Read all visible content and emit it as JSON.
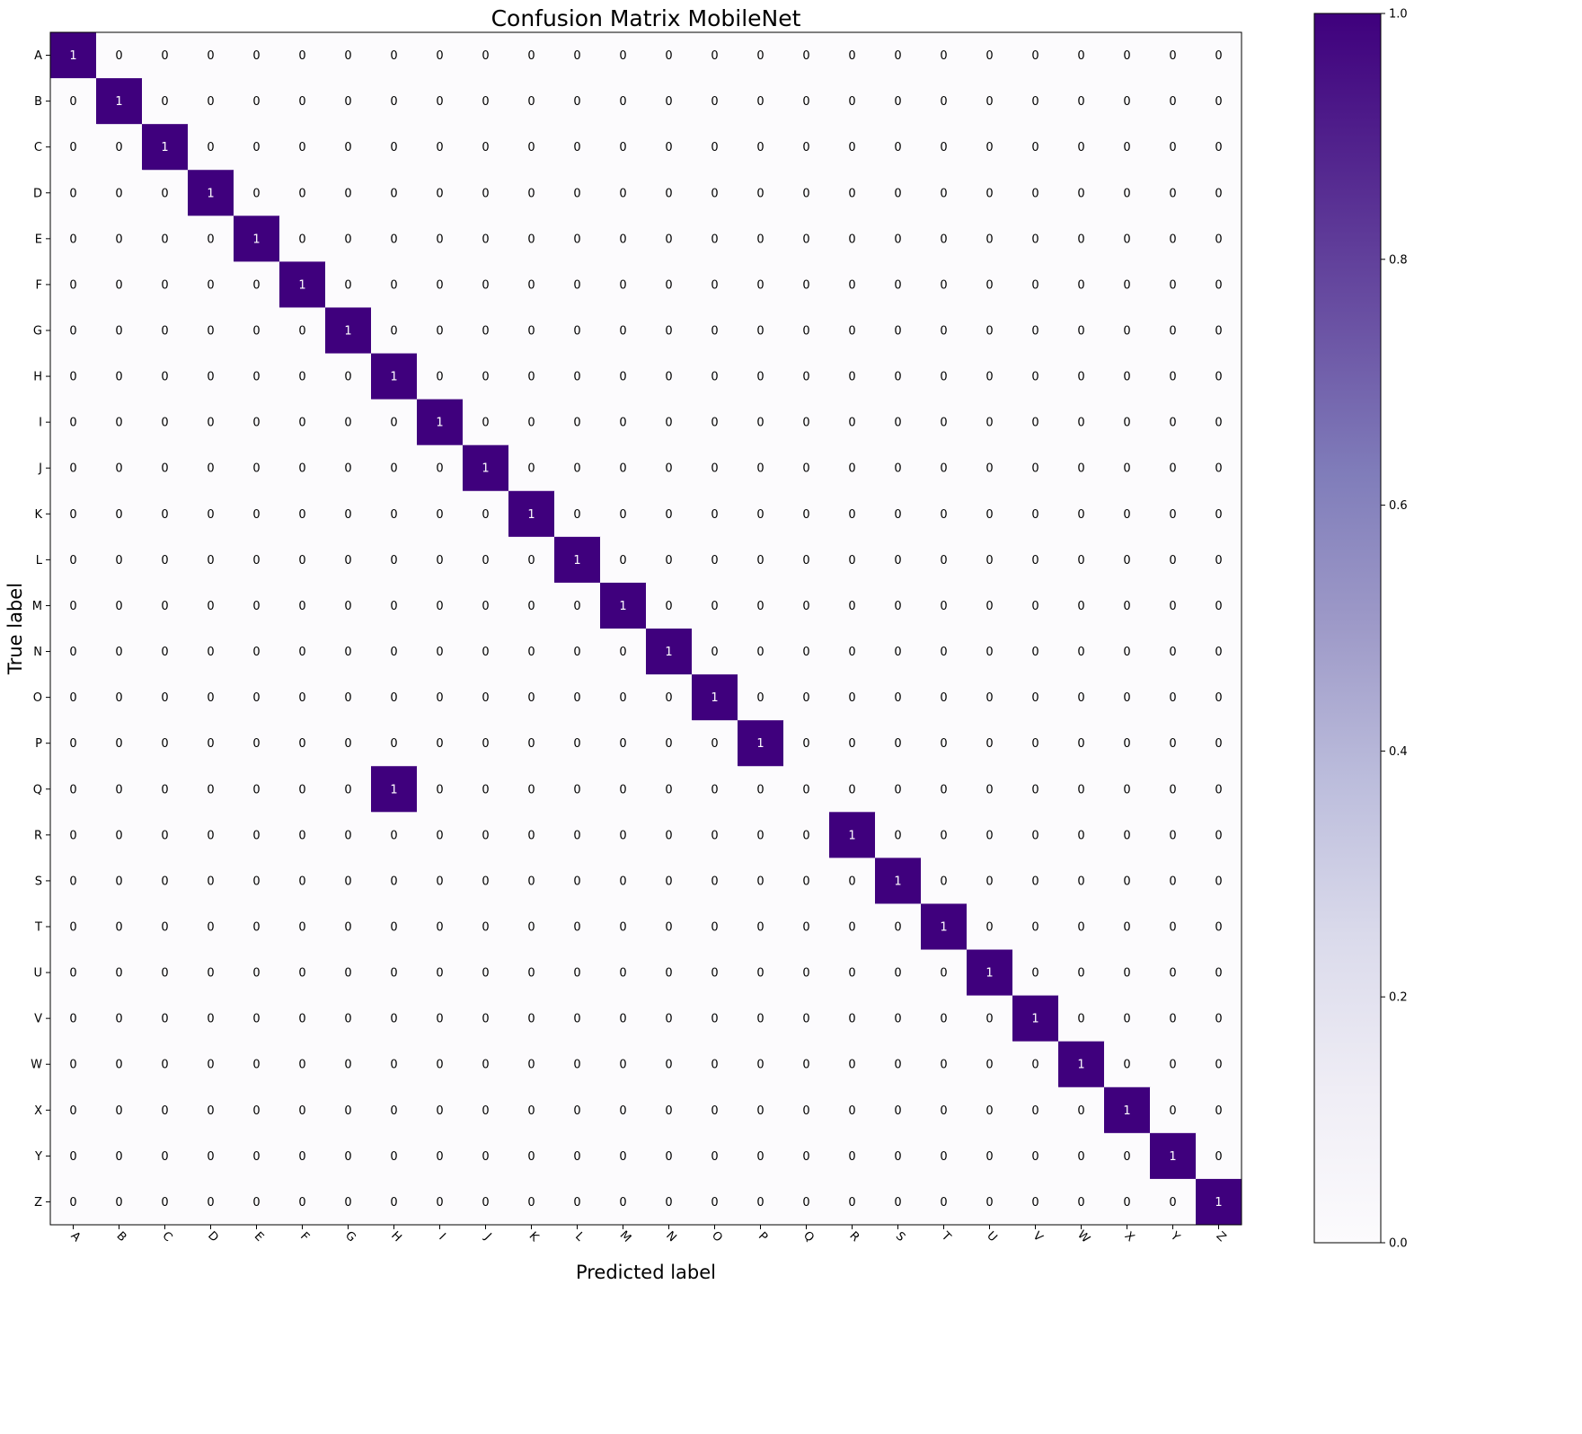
{
  "chart_data": {
    "type": "heatmap",
    "title": "Confusion Matrix MobileNet",
    "xlabel": "Predicted label",
    "ylabel": "True label",
    "x_categories": [
      "A",
      "B",
      "C",
      "D",
      "E",
      "F",
      "G",
      "H",
      "I",
      "J",
      "K",
      "L",
      "M",
      "N",
      "O",
      "P",
      "Q",
      "R",
      "S",
      "T",
      "U",
      "V",
      "W",
      "X",
      "Y",
      "Z"
    ],
    "y_categories": [
      "A",
      "B",
      "C",
      "D",
      "E",
      "F",
      "G",
      "H",
      "I",
      "J",
      "K",
      "L",
      "M",
      "N",
      "O",
      "P",
      "Q",
      "R",
      "S",
      "T",
      "U",
      "V",
      "W",
      "X",
      "Y",
      "Z"
    ],
    "values": [
      [
        1,
        0,
        0,
        0,
        0,
        0,
        0,
        0,
        0,
        0,
        0,
        0,
        0,
        0,
        0,
        0,
        0,
        0,
        0,
        0,
        0,
        0,
        0,
        0,
        0,
        0
      ],
      [
        0,
        1,
        0,
        0,
        0,
        0,
        0,
        0,
        0,
        0,
        0,
        0,
        0,
        0,
        0,
        0,
        0,
        0,
        0,
        0,
        0,
        0,
        0,
        0,
        0,
        0
      ],
      [
        0,
        0,
        1,
        0,
        0,
        0,
        0,
        0,
        0,
        0,
        0,
        0,
        0,
        0,
        0,
        0,
        0,
        0,
        0,
        0,
        0,
        0,
        0,
        0,
        0,
        0
      ],
      [
        0,
        0,
        0,
        1,
        0,
        0,
        0,
        0,
        0,
        0,
        0,
        0,
        0,
        0,
        0,
        0,
        0,
        0,
        0,
        0,
        0,
        0,
        0,
        0,
        0,
        0
      ],
      [
        0,
        0,
        0,
        0,
        1,
        0,
        0,
        0,
        0,
        0,
        0,
        0,
        0,
        0,
        0,
        0,
        0,
        0,
        0,
        0,
        0,
        0,
        0,
        0,
        0,
        0
      ],
      [
        0,
        0,
        0,
        0,
        0,
        1,
        0,
        0,
        0,
        0,
        0,
        0,
        0,
        0,
        0,
        0,
        0,
        0,
        0,
        0,
        0,
        0,
        0,
        0,
        0,
        0
      ],
      [
        0,
        0,
        0,
        0,
        0,
        0,
        1,
        0,
        0,
        0,
        0,
        0,
        0,
        0,
        0,
        0,
        0,
        0,
        0,
        0,
        0,
        0,
        0,
        0,
        0,
        0
      ],
      [
        0,
        0,
        0,
        0,
        0,
        0,
        0,
        1,
        0,
        0,
        0,
        0,
        0,
        0,
        0,
        0,
        0,
        0,
        0,
        0,
        0,
        0,
        0,
        0,
        0,
        0
      ],
      [
        0,
        0,
        0,
        0,
        0,
        0,
        0,
        0,
        1,
        0,
        0,
        0,
        0,
        0,
        0,
        0,
        0,
        0,
        0,
        0,
        0,
        0,
        0,
        0,
        0,
        0
      ],
      [
        0,
        0,
        0,
        0,
        0,
        0,
        0,
        0,
        0,
        1,
        0,
        0,
        0,
        0,
        0,
        0,
        0,
        0,
        0,
        0,
        0,
        0,
        0,
        0,
        0,
        0
      ],
      [
        0,
        0,
        0,
        0,
        0,
        0,
        0,
        0,
        0,
        0,
        1,
        0,
        0,
        0,
        0,
        0,
        0,
        0,
        0,
        0,
        0,
        0,
        0,
        0,
        0,
        0
      ],
      [
        0,
        0,
        0,
        0,
        0,
        0,
        0,
        0,
        0,
        0,
        0,
        1,
        0,
        0,
        0,
        0,
        0,
        0,
        0,
        0,
        0,
        0,
        0,
        0,
        0,
        0
      ],
      [
        0,
        0,
        0,
        0,
        0,
        0,
        0,
        0,
        0,
        0,
        0,
        0,
        1,
        0,
        0,
        0,
        0,
        0,
        0,
        0,
        0,
        0,
        0,
        0,
        0,
        0
      ],
      [
        0,
        0,
        0,
        0,
        0,
        0,
        0,
        0,
        0,
        0,
        0,
        0,
        0,
        1,
        0,
        0,
        0,
        0,
        0,
        0,
        0,
        0,
        0,
        0,
        0,
        0
      ],
      [
        0,
        0,
        0,
        0,
        0,
        0,
        0,
        0,
        0,
        0,
        0,
        0,
        0,
        0,
        1,
        0,
        0,
        0,
        0,
        0,
        0,
        0,
        0,
        0,
        0,
        0
      ],
      [
        0,
        0,
        0,
        0,
        0,
        0,
        0,
        0,
        0,
        0,
        0,
        0,
        0,
        0,
        0,
        1,
        0,
        0,
        0,
        0,
        0,
        0,
        0,
        0,
        0,
        0
      ],
      [
        0,
        0,
        0,
        0,
        0,
        0,
        0,
        1,
        0,
        0,
        0,
        0,
        0,
        0,
        0,
        0,
        0,
        0,
        0,
        0,
        0,
        0,
        0,
        0,
        0,
        0
      ],
      [
        0,
        0,
        0,
        0,
        0,
        0,
        0,
        0,
        0,
        0,
        0,
        0,
        0,
        0,
        0,
        0,
        0,
        1,
        0,
        0,
        0,
        0,
        0,
        0,
        0,
        0
      ],
      [
        0,
        0,
        0,
        0,
        0,
        0,
        0,
        0,
        0,
        0,
        0,
        0,
        0,
        0,
        0,
        0,
        0,
        0,
        1,
        0,
        0,
        0,
        0,
        0,
        0,
        0
      ],
      [
        0,
        0,
        0,
        0,
        0,
        0,
        0,
        0,
        0,
        0,
        0,
        0,
        0,
        0,
        0,
        0,
        0,
        0,
        0,
        1,
        0,
        0,
        0,
        0,
        0,
        0
      ],
      [
        0,
        0,
        0,
        0,
        0,
        0,
        0,
        0,
        0,
        0,
        0,
        0,
        0,
        0,
        0,
        0,
        0,
        0,
        0,
        0,
        1,
        0,
        0,
        0,
        0,
        0
      ],
      [
        0,
        0,
        0,
        0,
        0,
        0,
        0,
        0,
        0,
        0,
        0,
        0,
        0,
        0,
        0,
        0,
        0,
        0,
        0,
        0,
        0,
        1,
        0,
        0,
        0,
        0
      ],
      [
        0,
        0,
        0,
        0,
        0,
        0,
        0,
        0,
        0,
        0,
        0,
        0,
        0,
        0,
        0,
        0,
        0,
        0,
        0,
        0,
        0,
        0,
        1,
        0,
        0,
        0
      ],
      [
        0,
        0,
        0,
        0,
        0,
        0,
        0,
        0,
        0,
        0,
        0,
        0,
        0,
        0,
        0,
        0,
        0,
        0,
        0,
        0,
        0,
        0,
        0,
        1,
        0,
        0
      ],
      [
        0,
        0,
        0,
        0,
        0,
        0,
        0,
        0,
        0,
        0,
        0,
        0,
        0,
        0,
        0,
        0,
        0,
        0,
        0,
        0,
        0,
        0,
        0,
        0,
        1,
        0
      ],
      [
        0,
        0,
        0,
        0,
        0,
        0,
        0,
        0,
        0,
        0,
        0,
        0,
        0,
        0,
        0,
        0,
        0,
        0,
        0,
        0,
        0,
        0,
        0,
        0,
        0,
        1
      ]
    ],
    "colormap": "Purples",
    "color_low": "#fcfbfd",
    "color_high": "#3f007d",
    "colorbar": {
      "range": [
        0.0,
        1.0
      ],
      "ticks": [
        "0.0",
        "0.2",
        "0.4",
        "0.6",
        "0.8",
        "1.0"
      ]
    },
    "x_tick_rotation_deg": 45,
    "grid": false
  }
}
